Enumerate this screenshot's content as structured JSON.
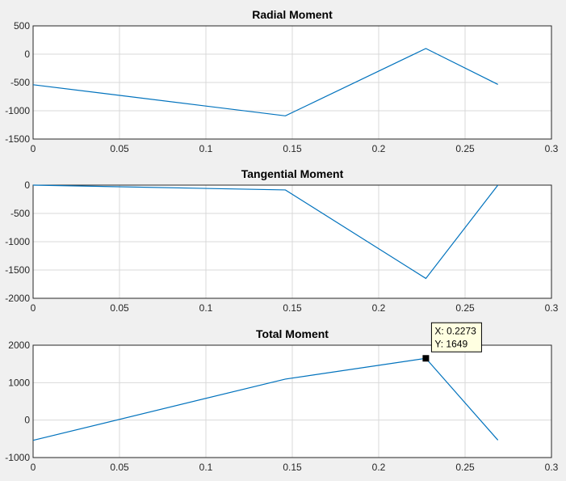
{
  "chart_data": [
    {
      "type": "line",
      "title": "Radial Moment",
      "xlim": [
        0,
        0.3
      ],
      "ylim": [
        -1500,
        500
      ],
      "xticks": [
        0,
        0.05,
        0.1,
        0.15,
        0.2,
        0.25,
        0.3
      ],
      "yticks": [
        -1500,
        -1000,
        -500,
        0,
        500
      ],
      "grid": true,
      "color": "#0072bd",
      "series": [
        {
          "x": [
            0,
            0.146,
            0.2273,
            0.269
          ],
          "y": [
            -540,
            -1090,
            100,
            -535
          ]
        }
      ]
    },
    {
      "type": "line",
      "title": "Tangential Moment",
      "xlim": [
        0,
        0.3
      ],
      "ylim": [
        -2000,
        0
      ],
      "xticks": [
        0,
        0.05,
        0.1,
        0.15,
        0.2,
        0.25,
        0.3
      ],
      "yticks": [
        -2000,
        -1500,
        -1000,
        -500,
        0
      ],
      "grid": true,
      "color": "#0072bd",
      "series": [
        {
          "x": [
            0,
            0.146,
            0.2273,
            0.269
          ],
          "y": [
            0,
            -85,
            -1649,
            0
          ]
        }
      ]
    },
    {
      "type": "line",
      "title": "Total Moment",
      "xlim": [
        0,
        0.3
      ],
      "ylim": [
        -1000,
        2000
      ],
      "xticks": [
        0,
        0.05,
        0.1,
        0.15,
        0.2,
        0.25,
        0.3
      ],
      "yticks": [
        -1000,
        0,
        1000,
        2000
      ],
      "grid": true,
      "color": "#0072bd",
      "series": [
        {
          "x": [
            0,
            0.146,
            0.2273,
            0.269
          ],
          "y": [
            -540,
            1095,
            1649,
            -535
          ]
        }
      ],
      "datatip": {
        "x": 0.2273,
        "y": 1649,
        "x_text": "X: 0.2273",
        "y_text": "Y: 1649"
      }
    }
  ]
}
